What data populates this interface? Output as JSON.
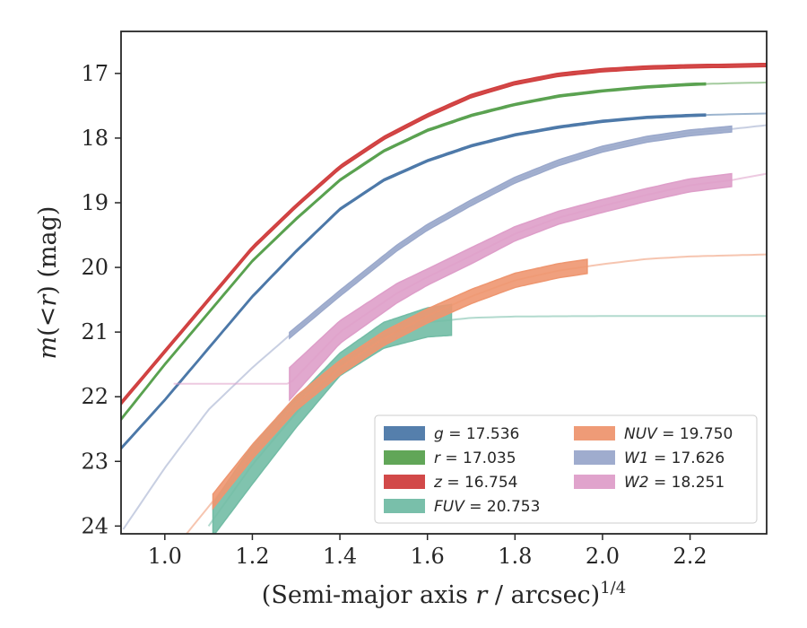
{
  "chart_data": {
    "type": "line",
    "xlabel": "(Semi-major axis r / arcsec)^1/4",
    "ylabel": "m(<r) (mag)",
    "xlim": [
      0.9,
      2.375
    ],
    "ylim": [
      24.12,
      16.35
    ],
    "y_inverted": true,
    "grid": false,
    "legend_position": "lower-right",
    "x_ticks": [
      "1.0",
      "1.2",
      "1.4",
      "1.6",
      "1.8",
      "2.0",
      "2.2"
    ],
    "y_ticks": [
      "17",
      "18",
      "19",
      "20",
      "21",
      "22",
      "23",
      "24"
    ],
    "series": [
      {
        "name": "g = 17.536",
        "color": "#4c78a8",
        "faint_range": [
          0.9,
          2.375
        ],
        "band_range": [
          0.9,
          2.235
        ],
        "band_width": 0.03,
        "x": [
          0.9,
          1.0,
          1.1,
          1.2,
          1.3,
          1.4,
          1.5,
          1.6,
          1.7,
          1.8,
          1.9,
          2.0,
          2.1,
          2.2,
          2.3,
          2.375
        ],
        "y": [
          22.8,
          22.05,
          21.25,
          20.45,
          19.75,
          19.1,
          18.65,
          18.35,
          18.12,
          17.95,
          17.83,
          17.74,
          17.68,
          17.65,
          17.63,
          17.62
        ]
      },
      {
        "name": "r = 17.035",
        "color": "#59a14f",
        "faint_range": [
          0.9,
          2.375
        ],
        "band_range": [
          0.9,
          2.235
        ],
        "band_width": 0.03,
        "x": [
          0.9,
          1.0,
          1.1,
          1.2,
          1.3,
          1.4,
          1.5,
          1.6,
          1.7,
          1.8,
          1.9,
          2.0,
          2.1,
          2.2,
          2.3,
          2.375
        ],
        "y": [
          22.35,
          21.5,
          20.7,
          19.9,
          19.25,
          18.65,
          18.2,
          17.88,
          17.65,
          17.48,
          17.35,
          17.27,
          17.21,
          17.17,
          17.15,
          17.14
        ]
      },
      {
        "name": "z = 16.754",
        "color": "#d03f3f",
        "faint_range": [
          0.9,
          2.375
        ],
        "band_range": [
          0.9,
          2.375
        ],
        "band_width": 0.05,
        "x": [
          0.9,
          1.0,
          1.1,
          1.2,
          1.3,
          1.4,
          1.5,
          1.6,
          1.7,
          1.8,
          1.9,
          2.0,
          2.1,
          2.2,
          2.3,
          2.375
        ],
        "y": [
          22.1,
          21.3,
          20.5,
          19.7,
          19.05,
          18.45,
          18.0,
          17.65,
          17.35,
          17.15,
          17.02,
          16.95,
          16.91,
          16.89,
          16.88,
          16.87
        ]
      },
      {
        "name": "FUV = 20.753",
        "color": "#72bca5",
        "faint_range": [
          1.1,
          2.375
        ],
        "band_range": [
          1.11,
          1.655
        ],
        "band_width": [
          0.5,
          0.6,
          0.45,
          0.35,
          0.4,
          0.45,
          0.5,
          0.5,
          0.3,
          0.3,
          0.25
        ],
        "x": [
          1.1,
          1.2,
          1.3,
          1.4,
          1.5,
          1.6,
          1.7,
          1.8,
          1.9,
          2.0,
          2.375
        ],
        "y": [
          24.0,
          23.05,
          22.25,
          21.5,
          21.05,
          20.85,
          20.78,
          20.76,
          20.755,
          20.753,
          20.753
        ]
      },
      {
        "name": "NUV = 19.750",
        "color": "#ee9670",
        "faint_range": [
          1.04,
          2.375
        ],
        "band_range": [
          1.11,
          1.965
        ],
        "band_width": 0.22,
        "x": [
          1.04,
          1.1,
          1.2,
          1.3,
          1.4,
          1.5,
          1.6,
          1.7,
          1.8,
          1.9,
          2.0,
          2.1,
          2.2,
          2.375
        ],
        "y": [
          24.2,
          23.7,
          22.85,
          22.1,
          21.55,
          21.1,
          20.75,
          20.45,
          20.2,
          20.05,
          19.95,
          19.87,
          19.83,
          19.8
        ]
      },
      {
        "name": "W1 = 17.626",
        "color": "#9aa8cb",
        "faint_range": [
          0.905,
          2.375
        ],
        "band_range": [
          1.285,
          2.295
        ],
        "band_width": 0.09,
        "x": [
          0.905,
          1.0,
          1.1,
          1.2,
          1.285,
          1.4,
          1.53,
          1.6,
          1.7,
          1.8,
          1.9,
          2.0,
          2.1,
          2.2,
          2.295,
          2.375
        ],
        "y": [
          24.05,
          23.1,
          22.2,
          21.55,
          21.05,
          20.4,
          19.7,
          19.38,
          19.0,
          18.65,
          18.38,
          18.17,
          18.02,
          17.92,
          17.86,
          17.8
        ]
      },
      {
        "name": "W2 = 18.251",
        "color": "#de9ec9",
        "faint_range": [
          1.02,
          2.375
        ],
        "band_range": [
          1.285,
          2.295
        ],
        "band_width": [
          0.5,
          0.35,
          0.3,
          0.25,
          0.25,
          0.22,
          0.2,
          0.2,
          0.2,
          0.2,
          0.2,
          0.2
        ],
        "x": [
          1.285,
          1.4,
          1.53,
          1.6,
          1.7,
          1.8,
          1.9,
          2.0,
          2.1,
          2.2,
          2.295,
          2.375
        ],
        "y": [
          21.8,
          21.0,
          20.4,
          20.15,
          19.82,
          19.48,
          19.23,
          19.05,
          18.88,
          18.73,
          18.65,
          18.55
        ]
      }
    ]
  }
}
